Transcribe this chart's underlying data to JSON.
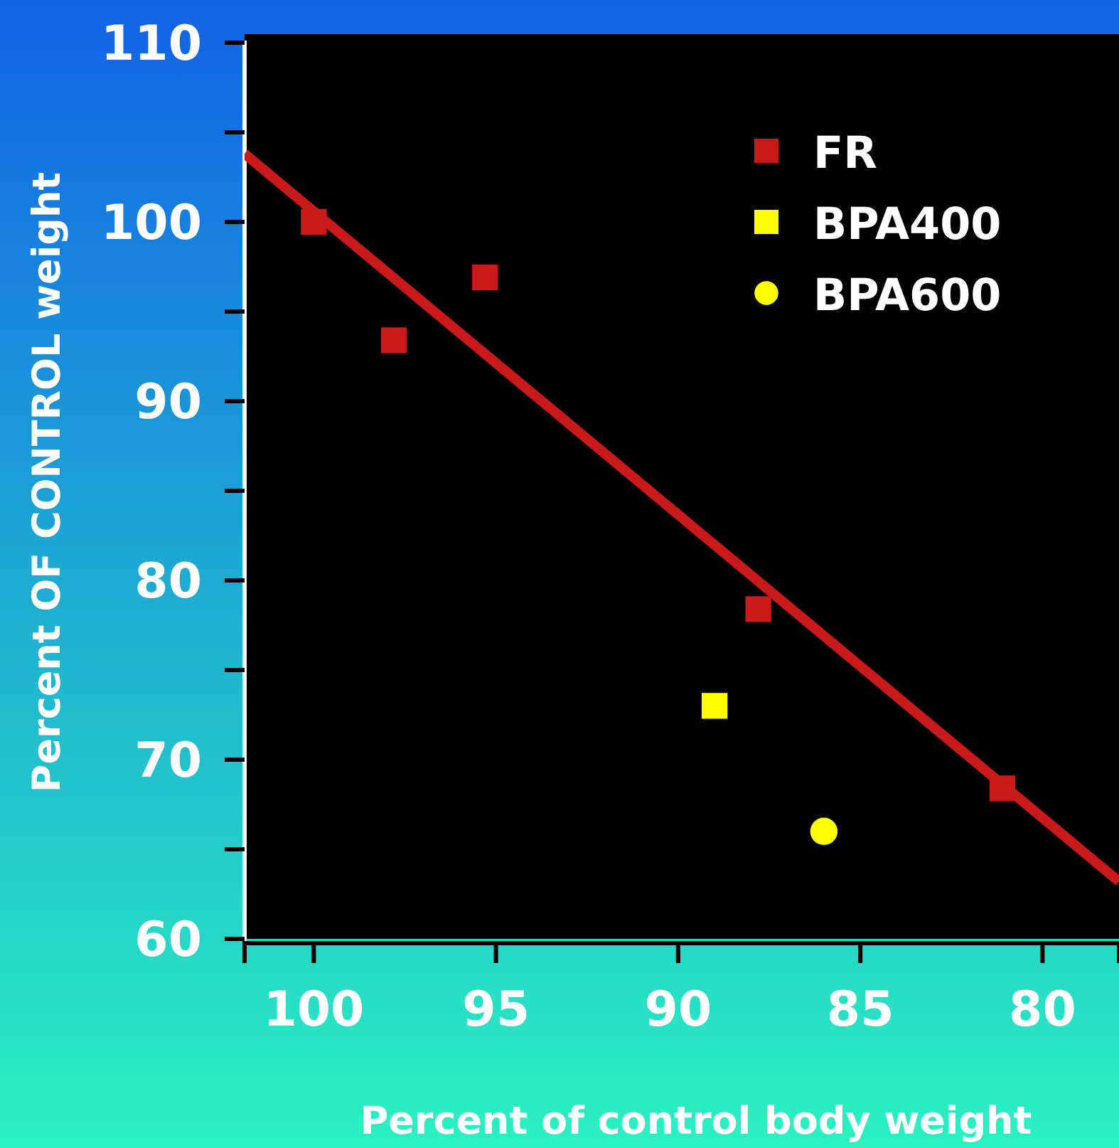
{
  "chart_data": {
    "type": "scatter",
    "xlabel": "Percent of control body weight",
    "ylabel": "Percent OF CONTROL weight",
    "xlim": [
      101.9,
      77.9
    ],
    "ylim": [
      60,
      110
    ],
    "xticks": [
      100,
      95,
      90,
      85,
      80
    ],
    "yticks": [
      60,
      {
        "value": 65,
        "label": null
      },
      70,
      {
        "value": 75,
        "label": null
      },
      80,
      {
        "value": 85,
        "label": null
      },
      90,
      {
        "value": 95,
        "label": null
      },
      100,
      {
        "value": 105,
        "label": null
      },
      110
    ],
    "legend": "top right",
    "grid": false,
    "series": [
      {
        "name": "FR",
        "color": "#c8191b",
        "marker": "square",
        "x": [
          100,
          97.8,
          95.3,
          87.8,
          81.1
        ],
        "values": [
          100,
          93.4,
          96.9,
          78.4,
          68.4
        ]
      },
      {
        "name": "BPA400",
        "color": "#ffff00",
        "marker": "square",
        "x": [
          89.0
        ],
        "values": [
          73.0
        ]
      },
      {
        "name": "BPA600",
        "color": "#ffff00",
        "marker": "circle",
        "x": [
          86.0
        ],
        "values": [
          66.0
        ]
      },
      {
        "type": "line",
        "color": "#c8191b",
        "marker": "none",
        "x": [
          101.9,
          77.9
        ],
        "values": [
          103.8,
          63.2
        ]
      }
    ]
  }
}
